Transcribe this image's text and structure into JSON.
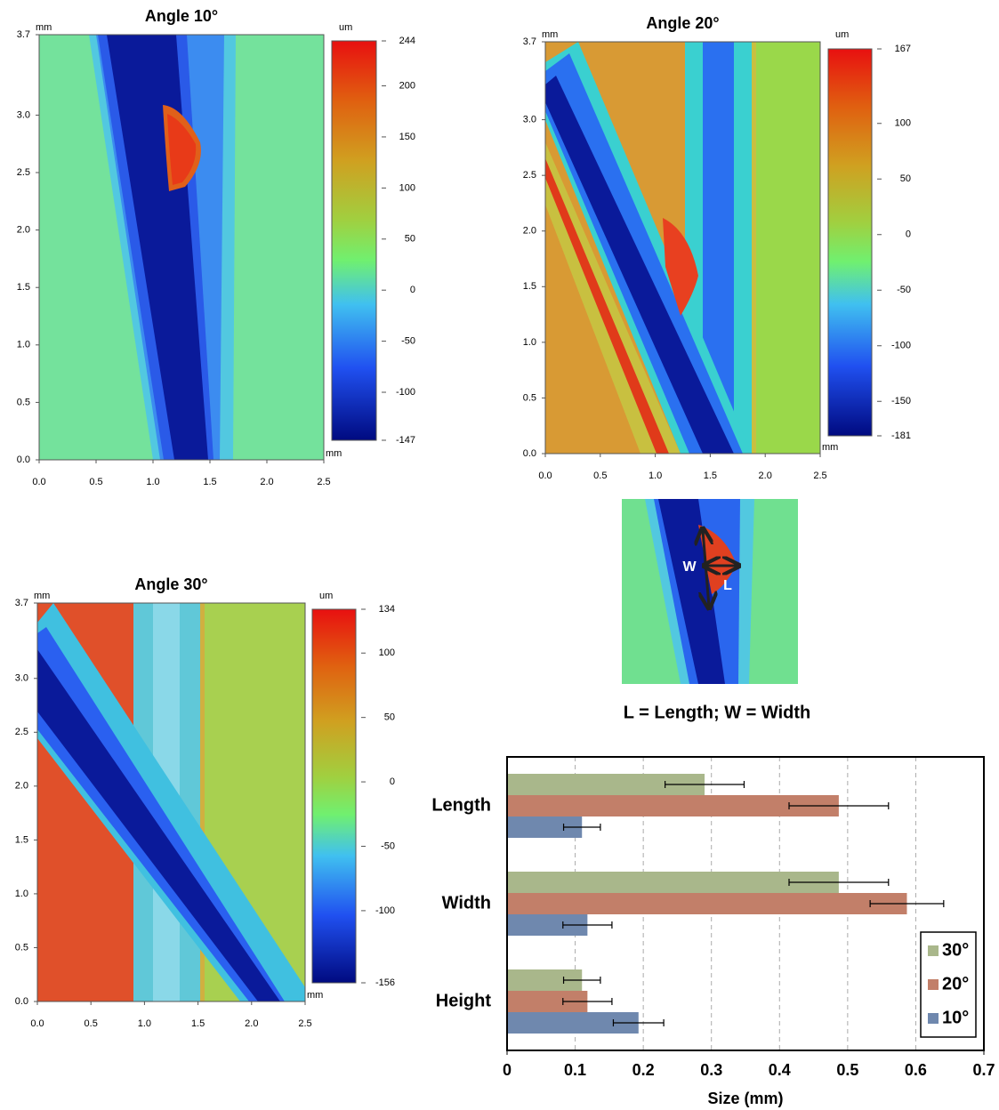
{
  "chart_data": [
    {
      "type": "heatmap",
      "title": "Angle 10°",
      "xlabel": "mm",
      "ylabel": "mm",
      "colorbar_label": "um",
      "xlim": [
        0,
        2.5
      ],
      "ylim": [
        0,
        3.7
      ],
      "xticks": [
        {
          "value": 0,
          "label": "0.0"
        },
        {
          "value": 0.5,
          "label": "0.5"
        },
        {
          "value": 1,
          "label": "1.0"
        },
        {
          "value": 1.5,
          "label": "1.5"
        },
        {
          "value": 2,
          "label": "2.0"
        },
        {
          "value": 2.5,
          "label": "2.5"
        }
      ],
      "yticks": [
        {
          "value": 0,
          "label": "0.0"
        },
        {
          "value": 0.5,
          "label": "0.5"
        },
        {
          "value": 1,
          "label": "1.0"
        },
        {
          "value": 1.5,
          "label": "1.5"
        },
        {
          "value": 2,
          "label": "2.0"
        },
        {
          "value": 2.5,
          "label": "2.5"
        },
        {
          "value": 3,
          "label": "3.0"
        },
        3.7
      ],
      "clim": [
        -147,
        244
      ],
      "cticks": [
        244,
        200,
        150,
        100,
        50,
        0,
        -50,
        -100,
        -147
      ]
    },
    {
      "type": "heatmap",
      "title": "Angle 20°",
      "xlabel": "mm",
      "ylabel": "mm",
      "colorbar_label": "um",
      "xlim": [
        0,
        2.5
      ],
      "ylim": [
        0,
        3.7
      ],
      "xticks": [
        {
          "value": 0,
          "label": "0.0"
        },
        {
          "value": 0.5,
          "label": "0.5"
        },
        {
          "value": 1,
          "label": "1.0"
        },
        {
          "value": 1.5,
          "label": "1.5"
        },
        {
          "value": 2,
          "label": "2.0"
        },
        {
          "value": 2.5,
          "label": "2.5"
        }
      ],
      "yticks": [
        {
          "value": 0,
          "label": "0.0"
        },
        {
          "value": 0.5,
          "label": "0.5"
        },
        {
          "value": 1,
          "label": "1.0"
        },
        {
          "value": 1.5,
          "label": "1.5"
        },
        {
          "value": 2,
          "label": "2.0"
        },
        {
          "value": 2.5,
          "label": "2.5"
        },
        {
          "value": 3,
          "label": "3.0"
        },
        3.7
      ],
      "clim": [
        -181,
        167
      ],
      "cticks": [
        167,
        100,
        50,
        0,
        -50,
        -100,
        -150,
        -181
      ]
    },
    {
      "type": "heatmap",
      "title": "Angle 30°",
      "xlabel": "mm",
      "ylabel": "mm",
      "colorbar_label": "um",
      "xlim": [
        0,
        2.5
      ],
      "ylim": [
        0,
        3.7
      ],
      "xticks": [
        {
          "value": 0,
          "label": "0.0"
        },
        {
          "value": 0.5,
          "label": "0.5"
        },
        {
          "value": 1,
          "label": "1.0"
        },
        {
          "value": 1.5,
          "label": "1.5"
        },
        {
          "value": 2,
          "label": "2.0"
        },
        {
          "value": 2.5,
          "label": "2.5"
        }
      ],
      "yticks": [
        {
          "value": 0,
          "label": "0.0"
        },
        {
          "value": 0.5,
          "label": "0.5"
        },
        {
          "value": 1,
          "label": "1.0"
        },
        {
          "value": 1.5,
          "label": "1.5"
        },
        {
          "value": 2,
          "label": "2.0"
        },
        {
          "value": 2.5,
          "label": "2.5"
        },
        {
          "value": 3,
          "label": "3.0"
        },
        3.7
      ],
      "clim": [
        -156,
        134
      ],
      "cticks": [
        134,
        100,
        50,
        0,
        -50,
        -100,
        -156
      ]
    },
    {
      "type": "hbar",
      "xlabel": "Size (mm)",
      "categories": [
        "Length",
        "Width",
        "Height"
      ],
      "series": [
        {
          "name": "30°",
          "color": "#a9b78b",
          "values": [
            0.29,
            0.487,
            0.11
          ],
          "errors": [
            0.058,
            0.073,
            0.027
          ]
        },
        {
          "name": "20°",
          "color": "#c27f69",
          "values": [
            0.487,
            0.587,
            0.118
          ],
          "errors": [
            0.073,
            0.054,
            0.036
          ]
        },
        {
          "name": "10°",
          "color": "#6f88ae",
          "values": [
            0.11,
            0.118,
            0.193
          ],
          "errors": [
            0.027,
            0.036,
            0.037
          ]
        }
      ],
      "xlim": [
        0,
        0.7
      ],
      "xticks": [
        0,
        0.1,
        0.2,
        0.3,
        0.4,
        0.5,
        0.6,
        0.7
      ],
      "grid": true,
      "legend": "lower right"
    }
  ],
  "inset": {
    "width_label": "W",
    "length_label": "L",
    "caption": "L = Length; W = Width"
  }
}
